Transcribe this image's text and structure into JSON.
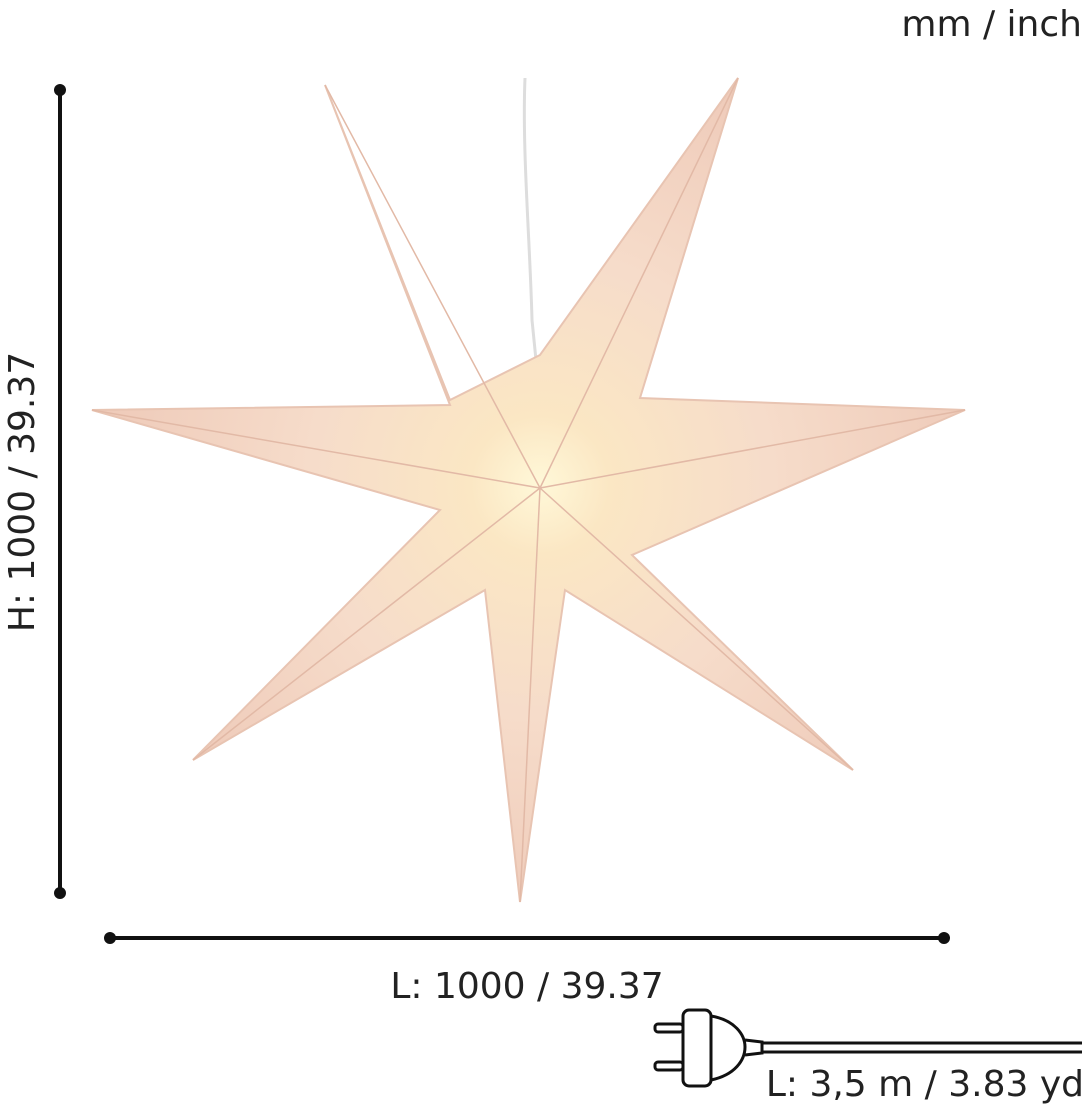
{
  "units": "mm / inch",
  "height_label": "H: 1000 / 39.37",
  "length_label": "L: 1000 / 39.37",
  "cable_label": "L: 3,5 m / 3.83 yd"
}
